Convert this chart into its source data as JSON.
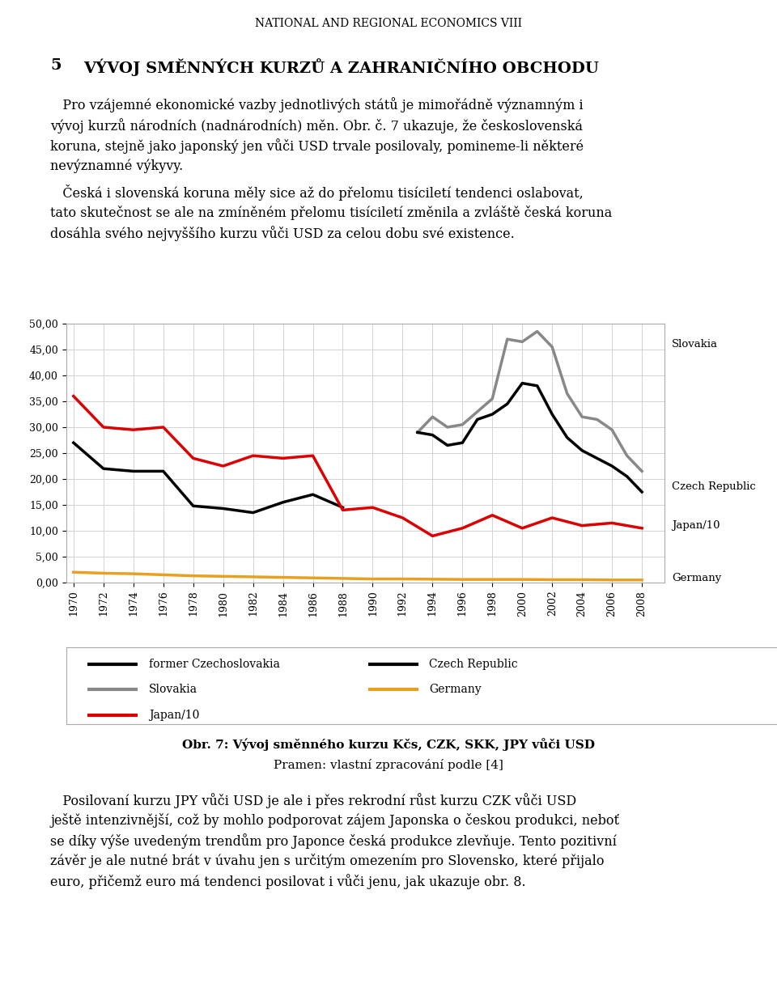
{
  "header": "NATIONAL AND REGIONAL ECONOMICS VIII",
  "section_num": "5",
  "section_title": "VÝVOJ SMĚNNÝCH KURZŮ A ZAHRANIČNÍHO OBCHODU",
  "para1": "   Pro vzájemné ekonomické vazby jednotlivých států je mimořádně významným i\nvývoj kurzů národních (nadnárodních) měn. Obr. č. 7 ukazuje, že československá\nkoruna, stejně jako japonský jen vůči USD trvale posilovaly, pomineme-li některé\nnevýznamné výkyvy.",
  "para2": "   Česká i slovenská koruna měly sice až do přelomu tisíciletí tendenci oslabovat,\ntato skutečnost se ale na zmíněném přelomu tisíciletí změnila a zvláště česká koruna\ndosáhla svého nejvyššího kurzu vůči USD za celou dobu své existence.",
  "caption_bold": "Obr. 7: Vývoj směnného kurzu Kčs, CZK, SKK, JPY vůči USD",
  "caption_normal": "Pramen: vlastní zpracování podle [4]",
  "para3": "   Posilovaní kurzu JPY vůči USD je ale i přes rekrodní růst kurzu CZK vůči USD\nještě intenzivnější, což by mohlo podporovat zájem Japonska o českou produkci, neboť\nse díky výše uvedeným trendům pro Japonce česká produkce zlevňuje. Tento pozitivní\nzávěr je ale nutné brát v úvahu jen s určitým omezením pro Slovensko, které přijalo\neuro, přičemž euro má tendenci posilovat i vůči jenu, jak ukazuje obr. 8.",
  "czecho_years": [
    1970,
    1972,
    1974,
    1976,
    1978,
    1980,
    1982,
    1984,
    1986,
    1988
  ],
  "czecho_values": [
    27.0,
    22.0,
    21.5,
    21.5,
    14.8,
    14.3,
    13.5,
    15.5,
    17.0,
    14.5
  ],
  "cr_years": [
    1993,
    1994,
    1995,
    1996,
    1997,
    1998,
    1999,
    2000,
    2001,
    2002,
    2003,
    2004,
    2005,
    2006,
    2007,
    2008
  ],
  "cr_values": [
    29.0,
    28.5,
    26.5,
    27.0,
    31.5,
    32.5,
    34.5,
    38.5,
    38.0,
    32.5,
    28.0,
    25.5,
    24.0,
    22.5,
    20.5,
    17.5
  ],
  "sk_years": [
    1993,
    1994,
    1995,
    1996,
    1997,
    1998,
    1999,
    2000,
    2001,
    2002,
    2003,
    2004,
    2005,
    2006,
    2007,
    2008
  ],
  "sk_values": [
    29.0,
    32.0,
    30.0,
    30.5,
    33.0,
    35.5,
    47.0,
    46.5,
    48.5,
    45.5,
    36.5,
    32.0,
    31.5,
    29.5,
    24.5,
    21.5
  ],
  "jp_years": [
    1970,
    1972,
    1974,
    1976,
    1978,
    1980,
    1982,
    1984,
    1986,
    1988,
    1990,
    1992,
    1994,
    1996,
    1998,
    2000,
    2002,
    2004,
    2006,
    2008
  ],
  "jp_values": [
    36.0,
    30.0,
    29.5,
    30.0,
    24.0,
    22.5,
    24.5,
    24.0,
    24.5,
    14.0,
    14.5,
    12.5,
    9.0,
    10.5,
    13.0,
    10.5,
    12.5,
    11.0,
    11.5,
    10.5
  ],
  "de_years": [
    1970,
    1972,
    1974,
    1976,
    1978,
    1980,
    1982,
    1984,
    1986,
    1988,
    1990,
    1992,
    1994,
    1996,
    1998,
    2000,
    2002,
    2004,
    2006,
    2008
  ],
  "de_values": [
    2.0,
    1.8,
    1.7,
    1.5,
    1.3,
    1.2,
    1.1,
    1.0,
    0.9,
    0.8,
    0.7,
    0.7,
    0.65,
    0.6,
    0.6,
    0.6,
    0.55,
    0.55,
    0.5,
    0.5
  ],
  "color_black": "#000000",
  "color_gray": "#888888",
  "color_red": "#dd0000",
  "color_orange": "#e8a020",
  "ytick_labels": [
    "0,00",
    "5,00",
    "10,00",
    "15,00",
    "20,00",
    "25,00",
    "30,00",
    "35,00",
    "40,00",
    "45,00",
    "50,00"
  ],
  "ytick_values": [
    0,
    5,
    10,
    15,
    20,
    25,
    30,
    35,
    40,
    45,
    50
  ],
  "xtick_years": [
    1970,
    1972,
    1974,
    1976,
    1978,
    1980,
    1982,
    1984,
    1986,
    1988,
    1990,
    1992,
    1994,
    1996,
    1998,
    2000,
    2002,
    2004,
    2006,
    2008
  ],
  "line_width": 2.5
}
